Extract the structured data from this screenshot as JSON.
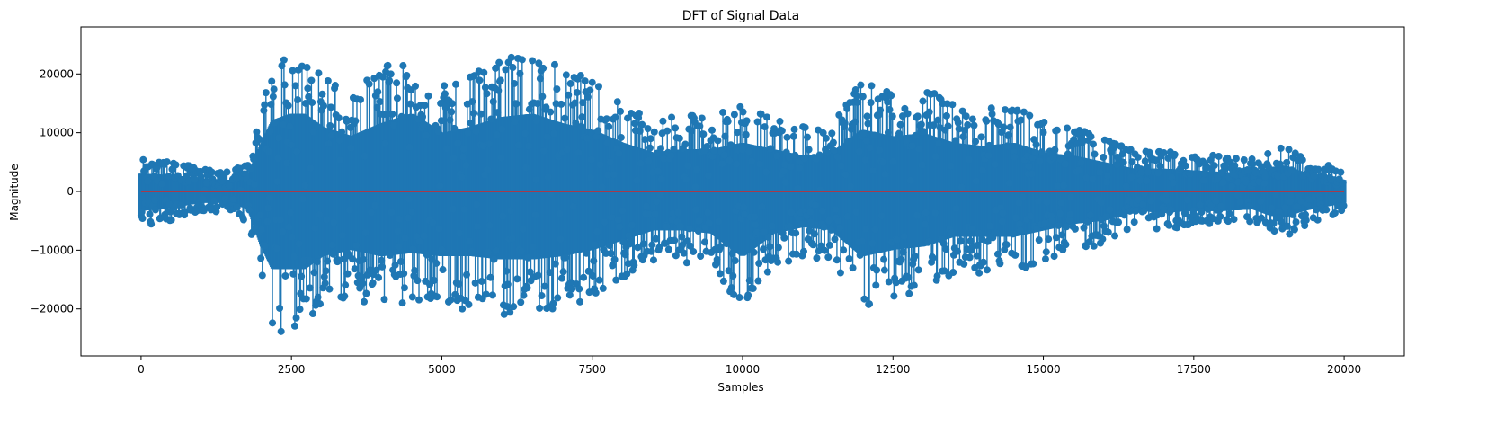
{
  "chart_data": {
    "type": "stem",
    "title": "DFT of Signal Data",
    "xlabel": "Samples",
    "ylabel": "Magnitude",
    "xlim": [
      -1000,
      21000
    ],
    "ylim": [
      -28000,
      28000
    ],
    "x_ticks": [
      0,
      2500,
      5000,
      7500,
      10000,
      12500,
      15000,
      17500,
      20000
    ],
    "x_tick_labels": [
      "0",
      "2500",
      "5000",
      "7500",
      "10000",
      "12500",
      "15000",
      "17500",
      "20000"
    ],
    "y_ticks": [
      -20000,
      -10000,
      0,
      10000,
      20000
    ],
    "y_tick_labels": [
      "−20000",
      "−10000",
      "0",
      "10000",
      "20000"
    ],
    "grid": false,
    "n_samples": 20000,
    "baseline": 0,
    "colors": {
      "stem": "#1f77b4",
      "baseline": "#d62728"
    },
    "envelope": {
      "x": [
        0,
        500,
        1000,
        1500,
        1800,
        2000,
        2200,
        2500,
        2700,
        3000,
        3500,
        4000,
        4500,
        5000,
        5500,
        6000,
        6500,
        7000,
        7500,
        8000,
        8500,
        9000,
        9500,
        10000,
        10500,
        11000,
        11500,
        12000,
        12500,
        13000,
        13500,
        14000,
        14500,
        15000,
        15500,
        16000,
        16500,
        17000,
        17500,
        18000,
        18500,
        18800,
        19000,
        19300,
        19600,
        20000
      ],
      "upper": [
        5500,
        5000,
        4000,
        3500,
        5000,
        14000,
        22000,
        24000,
        24000,
        20000,
        17000,
        21000,
        24000,
        18000,
        20000,
        23000,
        24000,
        21000,
        19000,
        15000,
        12000,
        13000,
        13000,
        15000,
        13000,
        11000,
        12000,
        19000,
        17000,
        18000,
        15000,
        14000,
        15000,
        12000,
        11000,
        9000,
        7000,
        7000,
        6500,
        6000,
        5500,
        7500,
        8000,
        6000,
        5000,
        3500
      ],
      "lower": [
        -6000,
        -5000,
        -3500,
        -3500,
        -5500,
        -16000,
        -24000,
        -24000,
        -24000,
        -20000,
        -18000,
        -20000,
        -19000,
        -20000,
        -20000,
        -21000,
        -21000,
        -20000,
        -18000,
        -15000,
        -12000,
        -12000,
        -13000,
        -20000,
        -13000,
        -11000,
        -12000,
        -20000,
        -18000,
        -17000,
        -14000,
        -14000,
        -14000,
        -12000,
        -10000,
        -9000,
        -6000,
        -6500,
        -6000,
        -6000,
        -5500,
        -7500,
        -8000,
        -6000,
        -5000,
        -3500
      ]
    }
  }
}
